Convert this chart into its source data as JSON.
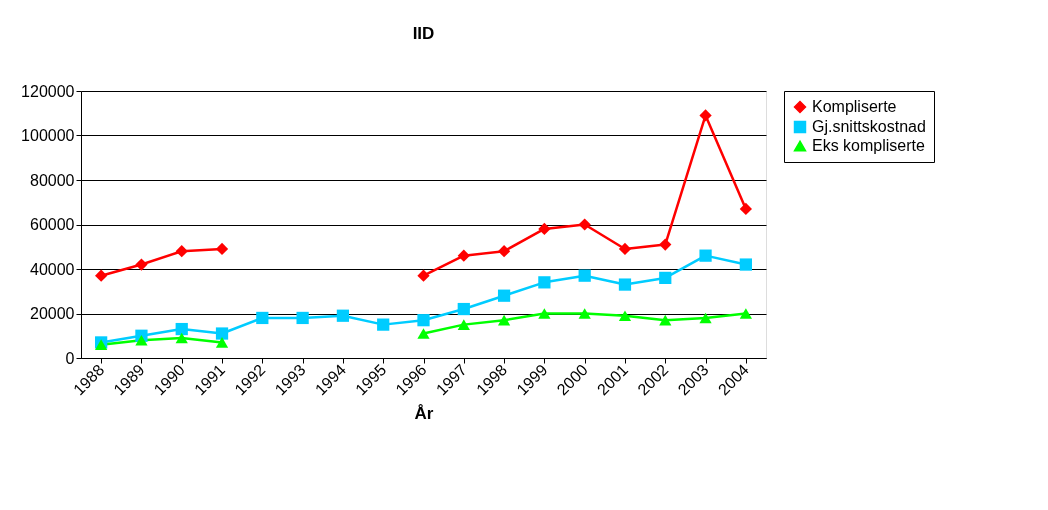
{
  "chart_data": {
    "type": "line",
    "title": "IID",
    "xlabel": "År",
    "categories": [
      "1988",
      "1989",
      "1990",
      "1991",
      "1992",
      "1993",
      "1994",
      "1995",
      "1996",
      "1997",
      "1998",
      "1999",
      "2000",
      "2001",
      "2002",
      "2003",
      "2004"
    ],
    "series": [
      {
        "name": "Kompliserte",
        "color": "#ff0000",
        "marker": "diamond",
        "values": [
          37000,
          42000,
          48000,
          49000,
          null,
          null,
          null,
          null,
          37000,
          46000,
          48000,
          58000,
          60000,
          49000,
          51000,
          109000,
          67000
        ]
      },
      {
        "name": "Gj.snittskostnad",
        "color": "#00ccff",
        "marker": "square",
        "values": [
          7000,
          10000,
          13000,
          11000,
          18000,
          18000,
          19000,
          15000,
          17000,
          22000,
          28000,
          34000,
          37000,
          33000,
          36000,
          46000,
          42000
        ]
      },
      {
        "name": "Eks kompliserte",
        "color": "#00ff00",
        "marker": "triangle",
        "values": [
          6000,
          8000,
          9000,
          7000,
          null,
          null,
          null,
          null,
          11000,
          15000,
          17000,
          20000,
          20000,
          19000,
          17000,
          18000,
          20000
        ]
      }
    ],
    "ylim": [
      0,
      120000
    ],
    "yticks": [
      0,
      20000,
      40000,
      60000,
      80000,
      100000,
      120000
    ],
    "grid": "y",
    "legend": "right",
    "line_style": "solid"
  }
}
